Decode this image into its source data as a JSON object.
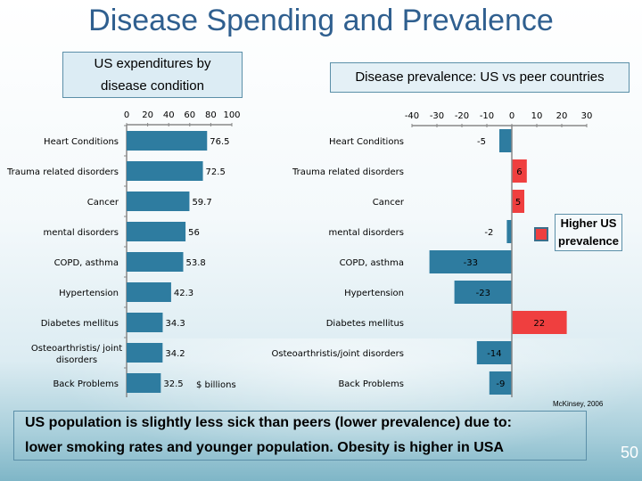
{
  "title": "Disease Spending and Prevalence",
  "left_header": [
    "US expenditures by",
    "disease condition"
  ],
  "right_header": "Disease prevalence: US vs peer countries",
  "legend_label": [
    "Higher US",
    "prevalence"
  ],
  "source": "McKinsey, 2006",
  "bottom_text": [
    "US population is slightly less sick than peers (lower prevalence) due to:",
    "lower smoking rates and younger population.  Obesity is higher in USA"
  ],
  "page_number": "50",
  "colors": {
    "title": "#2f5f8f",
    "bar_blue": "#2e7ca0",
    "bar_red": "#ef3f3f"
  },
  "chart_data": [
    {
      "type": "bar",
      "orientation": "horizontal",
      "title": "US expenditures by disease condition",
      "unit_label": "$ billions",
      "categories": [
        "Heart Conditions",
        "Trauma related disorders",
        "Cancer",
        "mental disorders",
        "COPD, asthma",
        "Hypertension",
        "Diabetes mellitus",
        "Osteoarthristis/ joint disorders",
        "Back Problems"
      ],
      "values": [
        76.5,
        72.5,
        59.7,
        56,
        53.8,
        42.3,
        34.3,
        34.2,
        32.5
      ],
      "value_labels": [
        "76.5",
        "72.5",
        "59.7",
        "56",
        "53.8",
        "42.3",
        "34.3",
        "34.2",
        "32.5"
      ],
      "xlim": [
        0,
        100
      ],
      "xticks": [
        "0",
        "20",
        "40",
        "60",
        "80",
        "100"
      ],
      "grid": false
    },
    {
      "type": "bar",
      "orientation": "horizontal",
      "title": "Disease prevalence: US vs peer countries",
      "categories": [
        "Heart Conditions",
        "Trauma related disorders",
        "Cancer",
        "mental disorders",
        "COPD, asthma",
        "Hypertension",
        "Diabetes mellitus",
        "Osteoarthristis/joint disorders",
        "Back Problems"
      ],
      "values": [
        -5,
        6,
        5,
        -2,
        -33,
        -23,
        22,
        -14,
        -9
      ],
      "value_labels": [
        "-5",
        "6",
        "5",
        "-2",
        "-33",
        "-23",
        "22",
        "-14",
        "-9"
      ],
      "xlim": [
        -40,
        30
      ],
      "xticks": [
        "-40",
        "-30",
        "-20",
        "-10",
        "0",
        "10",
        "20",
        "30"
      ],
      "grid": false,
      "legend": {
        "entry": "Higher US prevalence",
        "placement": "right"
      }
    }
  ]
}
